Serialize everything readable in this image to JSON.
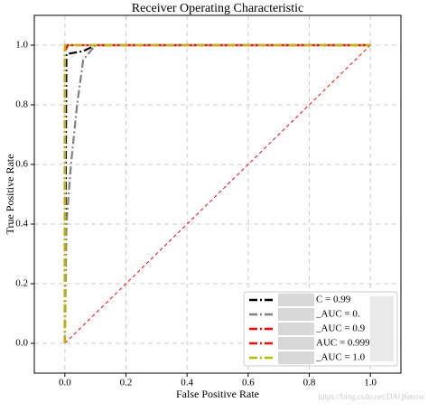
{
  "chart_data": {
    "type": "line",
    "title": "Receiver Operating Characteristic",
    "x_label": "False Positive Rate",
    "y_label": "True Positive Rate",
    "xlim": [
      -0.1,
      1.1
    ],
    "ylim": [
      -0.1,
      1.1
    ],
    "xticks": [
      {
        "value": 0,
        "label": "0.0"
      },
      0.2,
      0.4,
      0.6,
      0.8,
      {
        "value": 1,
        "label": "1.0"
      }
    ],
    "yticks": [
      {
        "value": 0,
        "label": "0.0"
      },
      0.2,
      0.4,
      0.6,
      0.8,
      {
        "value": 1,
        "label": "1.0"
      }
    ],
    "grid": true,
    "legend": "lower right",
    "series": [
      {
        "name": "C = 0.99",
        "color": "#000000",
        "x": [
          0,
          0.005,
          0.06,
          0.1,
          1
        ],
        "values": [
          0,
          0.97,
          0.98,
          1,
          1
        ]
      },
      {
        "name": "_AUC = 0.",
        "color": "#808080",
        "x": [
          0,
          0.005,
          0.02,
          0.04,
          0.06,
          0.1,
          1
        ],
        "values": [
          0,
          0.4,
          0.6,
          0.8,
          0.95,
          1,
          1
        ]
      },
      {
        "name": "_AUC = 0.9",
        "color": "#ff0000",
        "x": [
          0,
          0,
          0.01,
          1
        ],
        "values": [
          0,
          0.98,
          1,
          1
        ]
      },
      {
        "name": "AUC = 0.999",
        "color": "#ee1111",
        "x": [
          0,
          0,
          0.005,
          1
        ],
        "values": [
          0,
          0.99,
          1,
          1
        ]
      },
      {
        "name": "_AUC = 1.0",
        "color": "#bbbb00",
        "x": [
          0,
          0,
          1
        ],
        "values": [
          0,
          1,
          1
        ]
      }
    ],
    "reference_line": {
      "color": "#ff0000",
      "x": [
        0,
        1
      ],
      "values": [
        0,
        1
      ]
    },
    "watermark": "https://blog.csdn.net/DAQ6mow"
  }
}
